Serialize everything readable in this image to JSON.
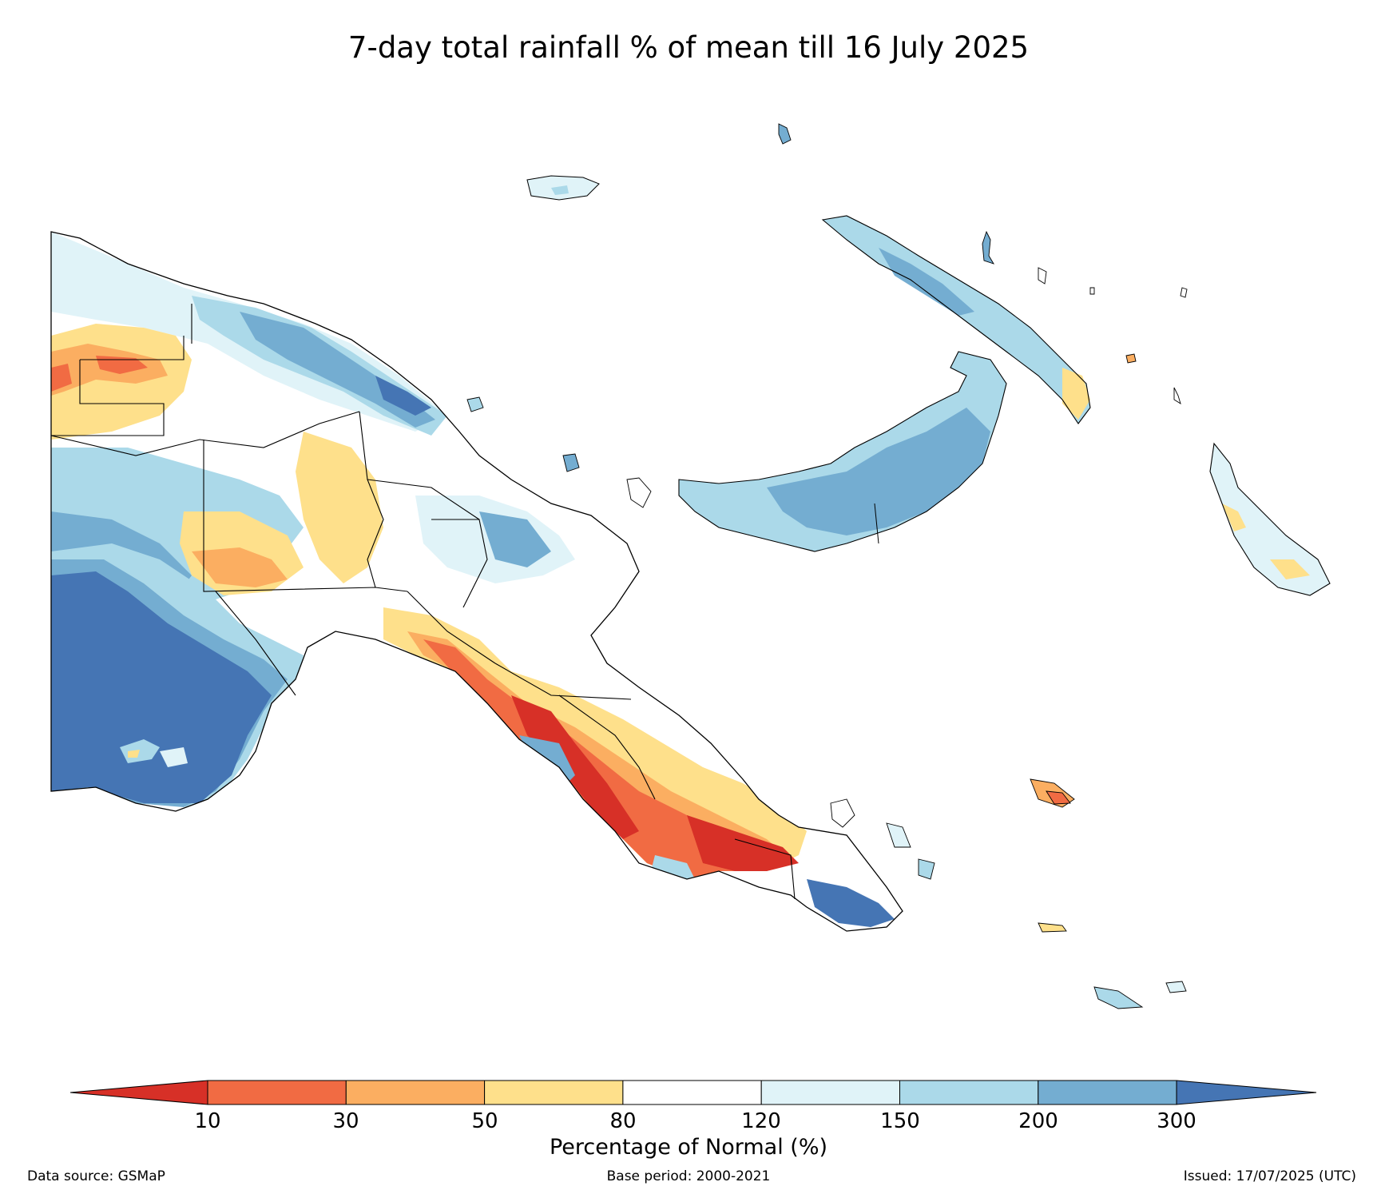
{
  "title": "7-day total rainfall % of mean till 16 July 2025",
  "colorbar": {
    "label": "Percentage of Normal (%)",
    "ticks": [
      "10",
      "30",
      "50",
      "80",
      "120",
      "150",
      "200",
      "300"
    ],
    "colors": {
      "below_10": "#d73027",
      "10_30": "#f16b43",
      "30_50": "#fbae61",
      "50_80": "#fee08b",
      "80_120": "#ffffff",
      "120_150": "#e0f3f8",
      "150_200": "#abd9e9",
      "200_300": "#74add1",
      "above_300": "#4575b4"
    }
  },
  "footer": {
    "source": "Data source: GSMaP",
    "base_period": "Base period: 2000-2021",
    "issued": "Issued: 17/07/2025 (UTC)"
  }
}
